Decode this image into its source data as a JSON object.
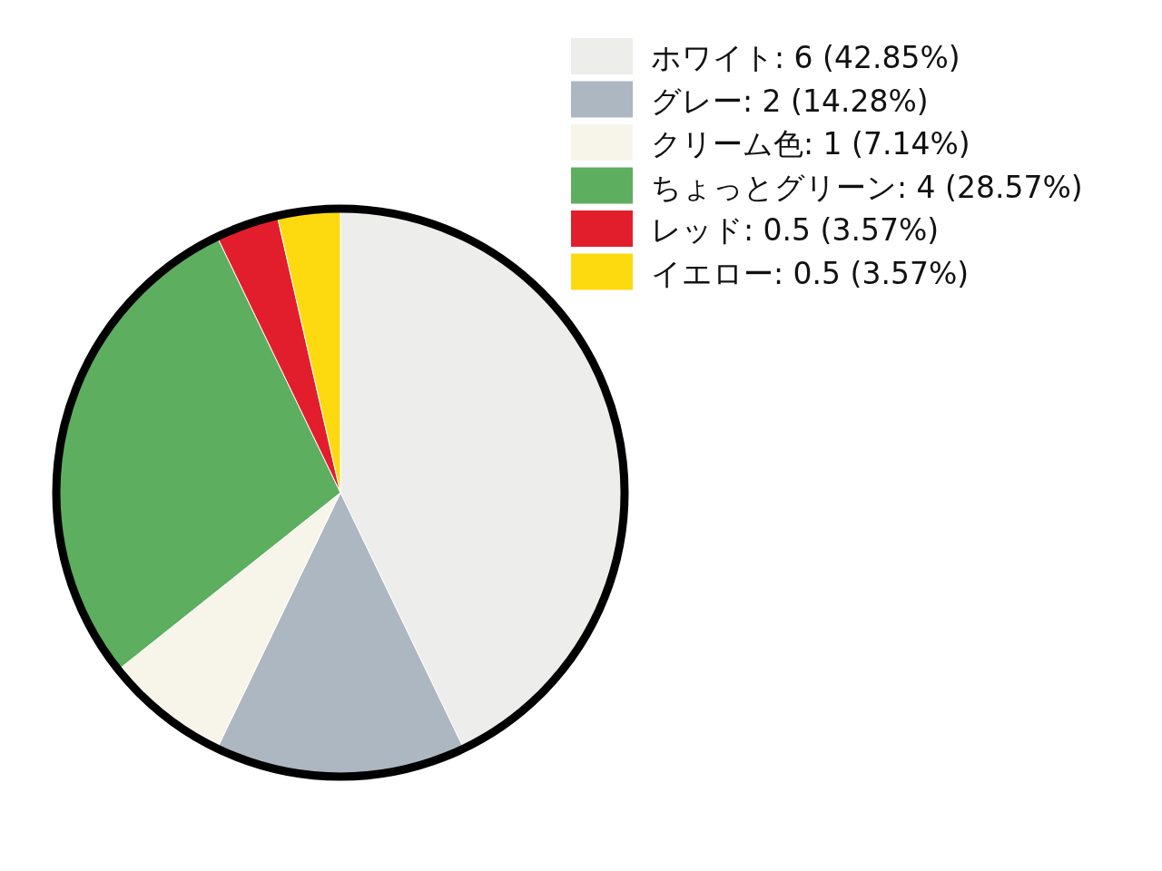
{
  "chart_data": {
    "type": "pie",
    "categories": [
      "ホワイト",
      "グレー",
      "クリーム色",
      "ちょっとグリーン",
      "レッド",
      "イエロー"
    ],
    "values": [
      6,
      2,
      1,
      4,
      0.5,
      0.5
    ],
    "value_labels": [
      "6 (42.85%)",
      "2 (14.28%)",
      "1 (7.14%)",
      "4 (28.57%)",
      "0.5 (3.57%)",
      "0.5 (3.57%)"
    ],
    "colors": [
      "#ededeb",
      "#adb7c1",
      "#f7f5ea",
      "#5dae5f",
      "#e31e2c",
      "#fdda10"
    ],
    "legend": "top right"
  }
}
